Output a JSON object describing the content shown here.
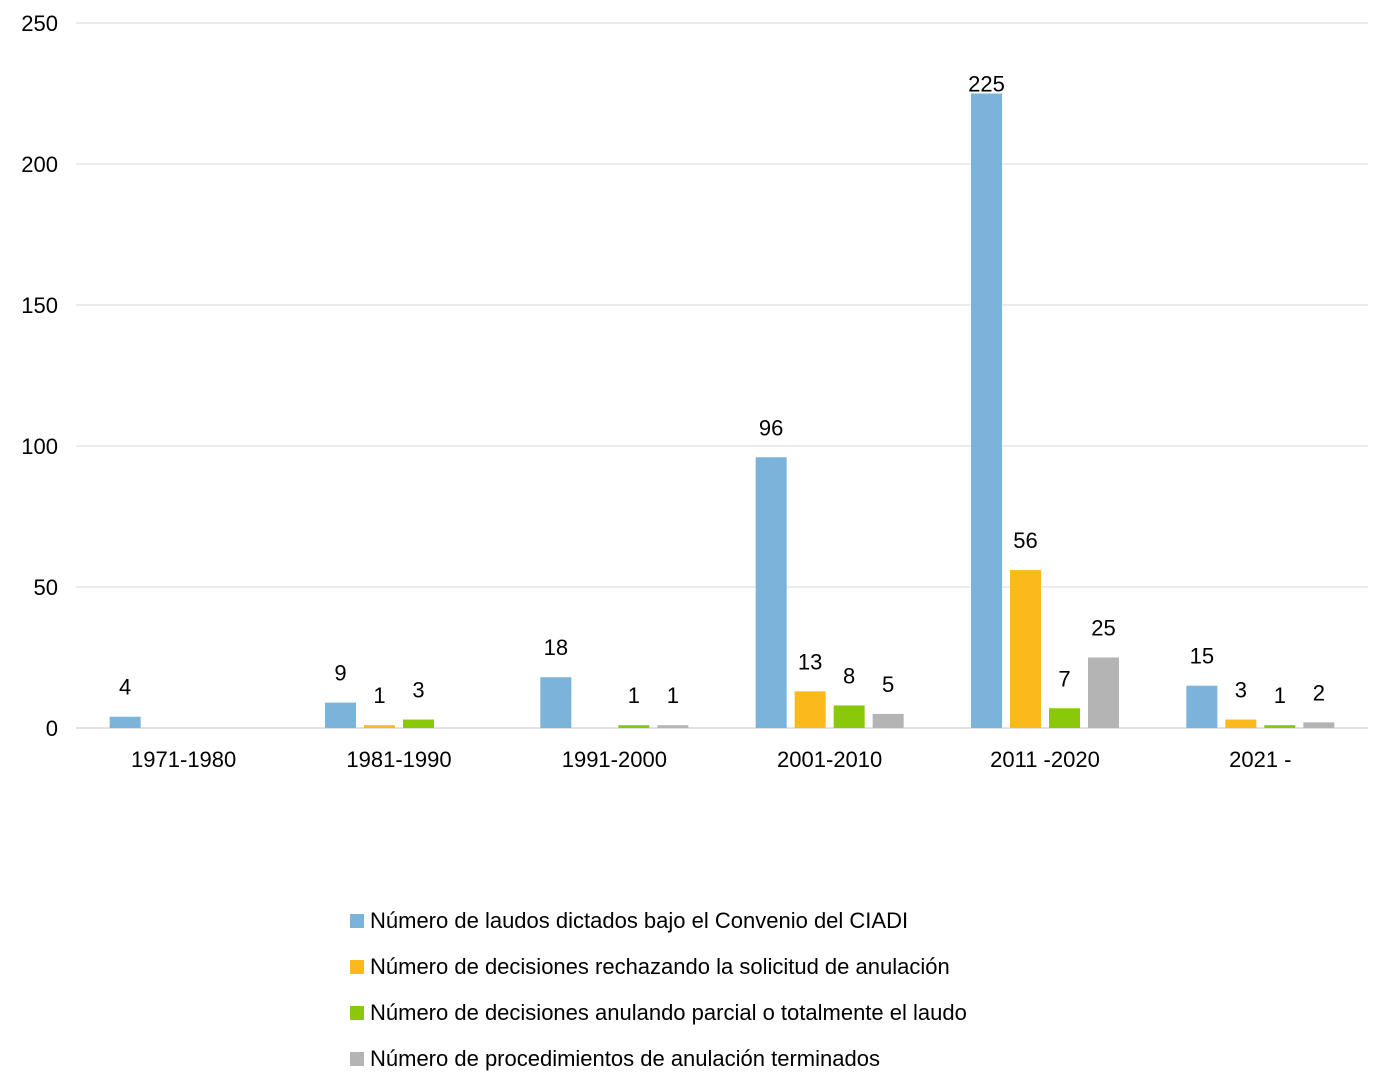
{
  "chart_data": {
    "type": "bar",
    "categories": [
      "1971-1980",
      "1981-1990",
      "1991-2000",
      "2001-2010",
      "2011 -2020",
      "2021 -"
    ],
    "series": [
      {
        "name": "Número de laudos dictados bajo el Convenio del CIADI",
        "color": "#7ab4da",
        "values": [
          4,
          9,
          18,
          96,
          225,
          15
        ],
        "labels": [
          "4",
          "9",
          "18",
          "96",
          "225",
          "15"
        ]
      },
      {
        "name": "Número de decisiones rechazando la solicitud de anulación",
        "color": "#fbb91b",
        "values": [
          0,
          1,
          0,
          13,
          56,
          3
        ],
        "labels": [
          "",
          "1",
          "",
          "13",
          "56",
          "3"
        ]
      },
      {
        "name": "Número de decisiones anulando parcial o totalmente el laudo",
        "color": "#8ac909",
        "values": [
          0,
          3,
          1,
          8,
          7,
          1
        ],
        "labels": [
          "",
          "3",
          "1",
          "8",
          "7",
          "1"
        ]
      },
      {
        "name": "Número de procedimientos de anulación terminados",
        "color": "#b4b4b4",
        "values": [
          0,
          0,
          1,
          5,
          25,
          2
        ],
        "labels": [
          "",
          "",
          "1",
          "5",
          "25",
          "2"
        ]
      }
    ],
    "y_ticks": [
      "0",
      "50",
      "100",
      "150",
      "200",
      "250"
    ],
    "ylim": [
      0,
      250
    ],
    "grid": true,
    "legend_position": "bottom",
    "title": "",
    "xlabel": "",
    "ylabel": ""
  }
}
